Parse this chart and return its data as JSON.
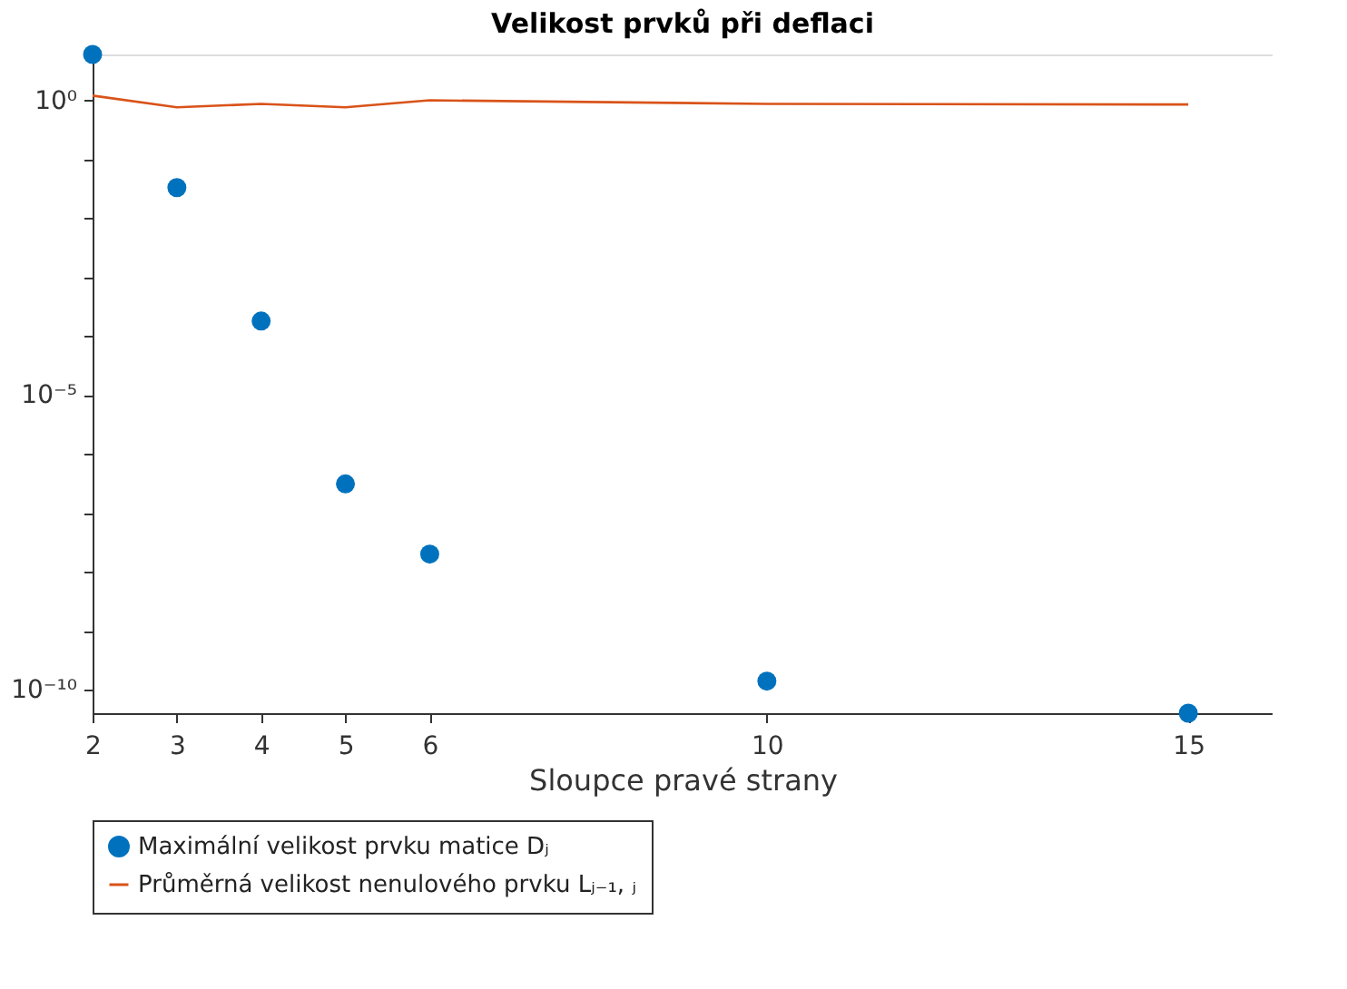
{
  "chart_data": {
    "type": "scatter",
    "title": "Velikost prvků při deflaci",
    "xlabel": "Sloupce pravé strany",
    "x": [
      2,
      3,
      4,
      5,
      6,
      10,
      15
    ],
    "series": [
      {
        "name": "Maximální velikost prvku matice Dⱼ",
        "color": "#0072bd",
        "marker": "circle",
        "values": [
          6,
          0.033,
          0.00018,
          3.1e-07,
          2e-08,
          1.4e-10,
          4e-11
        ]
      },
      {
        "name": "Průměrná velikost nenulového prvku Lⱼ₋₁, ⱼ",
        "type": "line",
        "color": "#d95319",
        "line_style": "solid",
        "values": [
          1.2,
          0.76,
          0.87,
          0.76,
          1.0,
          0.87,
          0.85
        ]
      }
    ],
    "log": "y",
    "xlim": [
      2,
      16
    ],
    "ylim": [
      4e-11,
      6
    ],
    "xticks": [
      2,
      3,
      4,
      5,
      6,
      10,
      15
    ],
    "yticks": [
      {
        "value": 1,
        "label": "10⁰"
      },
      {
        "value": 0.1,
        "label": null
      },
      {
        "value": 0.01,
        "label": null
      },
      {
        "value": 0.001,
        "label": null
      },
      {
        "value": 0.0001,
        "label": null
      },
      {
        "value": 1e-05,
        "label": "10⁻⁵"
      },
      {
        "value": 1e-06,
        "label": null
      },
      {
        "value": 1e-07,
        "label": null
      },
      {
        "value": 1e-08,
        "label": null
      },
      {
        "value": 1e-09,
        "label": null
      },
      {
        "value": 1e-10,
        "label": "10⁻¹⁰"
      }
    ],
    "grid": false,
    "legend": "bottom"
  }
}
